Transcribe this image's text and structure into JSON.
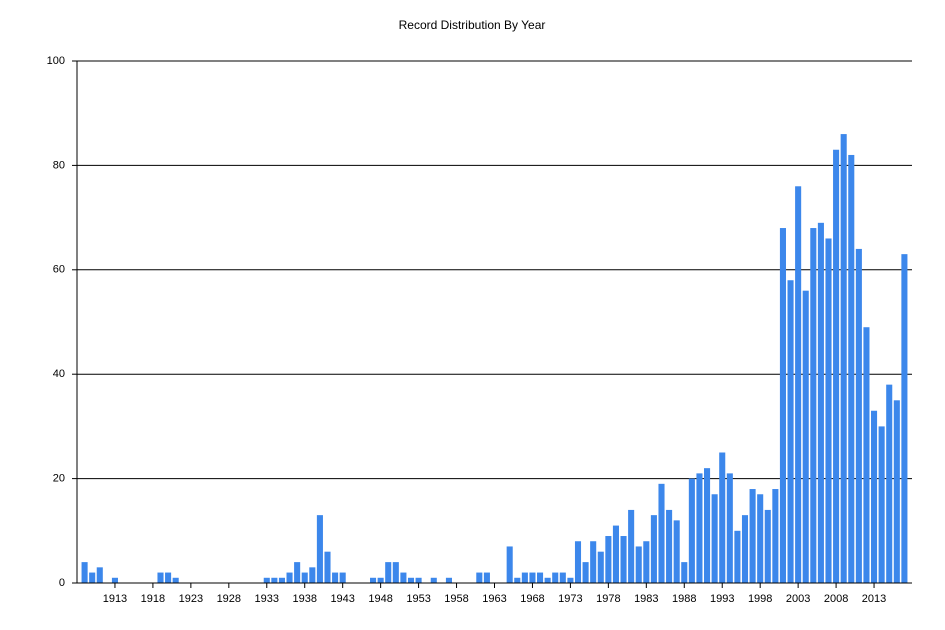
{
  "chart_data": {
    "type": "bar",
    "title": "Record Distribution By Year",
    "x": [
      1909,
      1910,
      1911,
      1912,
      1913,
      1914,
      1915,
      1916,
      1917,
      1918,
      1919,
      1920,
      1921,
      1922,
      1923,
      1924,
      1925,
      1926,
      1927,
      1928,
      1929,
      1930,
      1931,
      1932,
      1933,
      1934,
      1935,
      1936,
      1937,
      1938,
      1939,
      1940,
      1941,
      1942,
      1943,
      1944,
      1945,
      1946,
      1947,
      1948,
      1949,
      1950,
      1951,
      1952,
      1953,
      1954,
      1955,
      1956,
      1957,
      1958,
      1959,
      1960,
      1961,
      1962,
      1963,
      1964,
      1965,
      1966,
      1967,
      1968,
      1969,
      1970,
      1971,
      1972,
      1973,
      1974,
      1975,
      1976,
      1977,
      1978,
      1979,
      1980,
      1981,
      1982,
      1983,
      1984,
      1985,
      1986,
      1987,
      1988,
      1989,
      1990,
      1991,
      1992,
      1993,
      1994,
      1995,
      1996,
      1997,
      1998,
      1999,
      2000,
      2001,
      2002,
      2003,
      2004,
      2005,
      2006,
      2007,
      2008,
      2009,
      2010,
      2011,
      2012,
      2013,
      2014,
      2015,
      2016,
      2017
    ],
    "values": [
      4,
      2,
      3,
      0,
      1,
      0,
      0,
      0,
      0,
      0,
      2,
      2,
      1,
      0,
      0,
      0,
      0,
      0,
      0,
      0,
      0,
      0,
      0,
      0,
      1,
      1,
      1,
      2,
      4,
      2,
      3,
      13,
      6,
      2,
      2,
      0,
      0,
      0,
      1,
      1,
      4,
      4,
      2,
      1,
      1,
      0,
      1,
      0,
      1,
      0,
      0,
      0,
      2,
      2,
      0,
      0,
      7,
      1,
      2,
      2,
      2,
      1,
      2,
      2,
      1,
      8,
      4,
      8,
      6,
      9,
      11,
      9,
      14,
      7,
      8,
      13,
      19,
      14,
      12,
      4,
      20,
      21,
      22,
      17,
      25,
      21,
      10,
      13,
      18,
      17,
      14,
      18,
      68,
      58,
      76,
      56,
      68,
      69,
      66,
      83,
      86,
      82,
      64,
      49,
      33,
      30,
      38,
      35,
      63
    ],
    "color": "#3c87eb",
    "xlim": [
      1908,
      2018
    ],
    "xticks": [
      1913,
      1918,
      1923,
      1928,
      1933,
      1938,
      1943,
      1948,
      1953,
      1958,
      1963,
      1968,
      1973,
      1978,
      1983,
      1988,
      1993,
      1998,
      2003,
      2008,
      2013
    ],
    "ylim": [
      0,
      100
    ],
    "yticks": [
      0,
      20,
      40,
      60,
      80,
      100
    ],
    "grid": true
  }
}
